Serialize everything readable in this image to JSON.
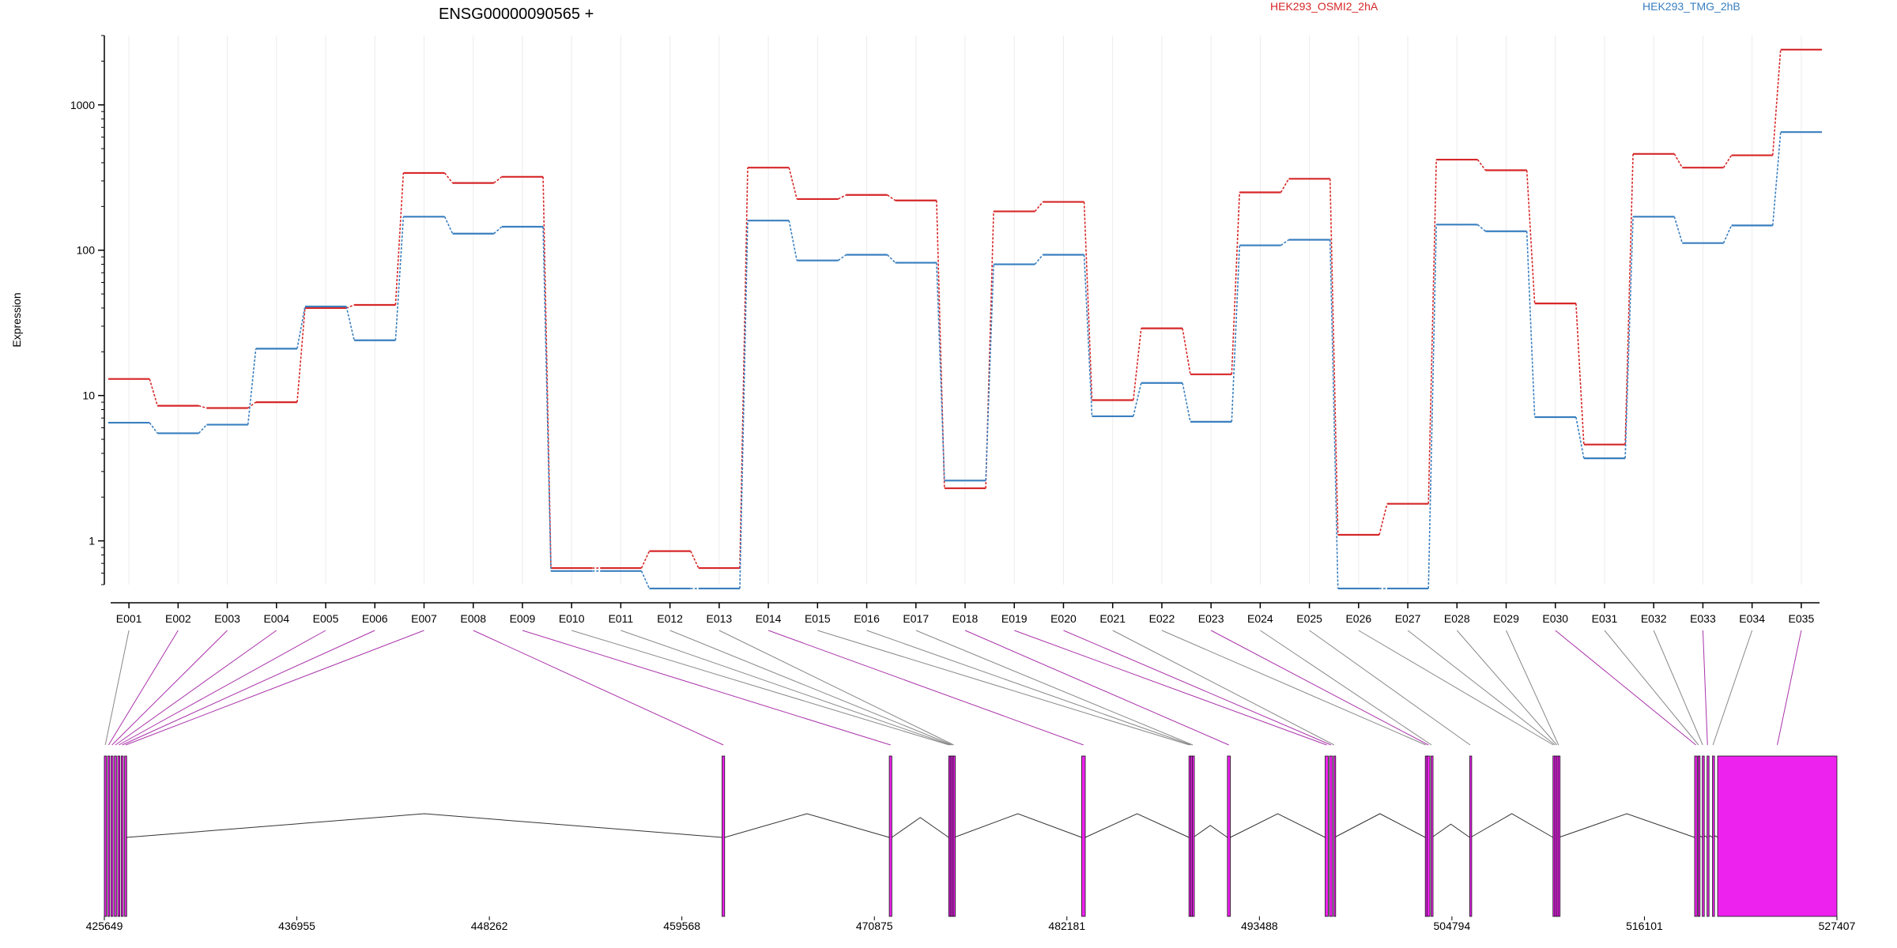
{
  "chart_data": {
    "type": "line",
    "title": "ENSG00000090565 +",
    "ylabel": "Expression",
    "xlabel": "",
    "yscale": "log",
    "ylim": [
      0.5,
      3000
    ],
    "yticks": [
      1,
      10,
      100,
      1000
    ],
    "ytick_labels": [
      "1",
      "10",
      "100",
      "1000"
    ],
    "grid": "vertical",
    "legend_position": "top-right",
    "categories": [
      "E001",
      "E002",
      "E003",
      "E004",
      "E005",
      "E006",
      "E007",
      "E008",
      "E009",
      "E010",
      "E011",
      "E012",
      "E013",
      "E014",
      "E015",
      "E016",
      "E017",
      "E018",
      "E019",
      "E020",
      "E021",
      "E022",
      "E023",
      "E024",
      "E025",
      "E026",
      "E027",
      "E028",
      "E029",
      "E030",
      "E031",
      "E032",
      "E033",
      "E034",
      "E035"
    ],
    "series": [
      {
        "name": "HEK293_OSMI2_2hA",
        "color": "#d62728",
        "values": [
          13,
          8.5,
          8.2,
          9,
          40,
          42,
          340,
          290,
          320,
          0.65,
          0.65,
          0.85,
          0.65,
          370,
          225,
          240,
          220,
          2.3,
          185,
          215,
          9.3,
          29,
          14,
          250,
          310,
          1.1,
          1.8,
          420,
          355,
          43,
          4.6,
          460,
          370,
          450,
          2400
        ]
      },
      {
        "name": "HEK293_TMG_2hB",
        "color": "#3a7fbf",
        "values": [
          6.5,
          5.5,
          6.3,
          21,
          41,
          24,
          170,
          130,
          145,
          0.62,
          0.62,
          0.47,
          0.47,
          160,
          85,
          93,
          82,
          2.6,
          80,
          93,
          7.2,
          12.2,
          6.6,
          108,
          118,
          0.47,
          0.47,
          150,
          135,
          7.1,
          3.7,
          170,
          112,
          148,
          650
        ]
      }
    ],
    "gene_track": {
      "x_ticks": [
        425649,
        436955,
        448262,
        459568,
        470875,
        482181,
        493488,
        504794,
        516101,
        527407
      ],
      "x_tick_labels": [
        "425649",
        "436955",
        "448262",
        "459568",
        "470875",
        "482181",
        "493488",
        "504794",
        "516101",
        "527407"
      ],
      "exon_color": "#ee22ee",
      "highlight_color": "#aa33aa",
      "exons": [
        {
          "id": "E001",
          "start": 425649,
          "end": 425760,
          "hl": false
        },
        {
          "id": "E002",
          "start": 425840,
          "end": 425960,
          "hl": true
        },
        {
          "id": "E003",
          "start": 426040,
          "end": 426160,
          "hl": true
        },
        {
          "id": "E004",
          "start": 426240,
          "end": 426360,
          "hl": true
        },
        {
          "id": "E005",
          "start": 426440,
          "end": 426560,
          "hl": true
        },
        {
          "id": "E006",
          "start": 426640,
          "end": 426760,
          "hl": true
        },
        {
          "id": "E007",
          "start": 426840,
          "end": 426960,
          "hl": true
        },
        {
          "id": "E008",
          "start": 461930,
          "end": 462080,
          "hl": true
        },
        {
          "id": "E009",
          "start": 471750,
          "end": 471900,
          "hl": true
        },
        {
          "id": "E010",
          "start": 475240,
          "end": 475290,
          "hl": false
        },
        {
          "id": "E011",
          "start": 475330,
          "end": 475380,
          "hl": false
        },
        {
          "id": "E012",
          "start": 475420,
          "end": 475470,
          "hl": false
        },
        {
          "id": "E013",
          "start": 475510,
          "end": 475560,
          "hl": false
        },
        {
          "id": "E014",
          "start": 483050,
          "end": 483260,
          "hl": true
        },
        {
          "id": "E015",
          "start": 489350,
          "end": 489400,
          "hl": false
        },
        {
          "id": "E016",
          "start": 489450,
          "end": 489500,
          "hl": false
        },
        {
          "id": "E017",
          "start": 489550,
          "end": 489600,
          "hl": false
        },
        {
          "id": "E018",
          "start": 491610,
          "end": 491780,
          "hl": true
        },
        {
          "id": "E019",
          "start": 497350,
          "end": 497530,
          "hl": true
        },
        {
          "id": "E020",
          "start": 497600,
          "end": 497780,
          "hl": true
        },
        {
          "id": "E021",
          "start": 497850,
          "end": 497900,
          "hl": false
        },
        {
          "id": "E022",
          "start": 503230,
          "end": 503280,
          "hl": false
        },
        {
          "id": "E023",
          "start": 503330,
          "end": 503500,
          "hl": true
        },
        {
          "id": "E024",
          "start": 503570,
          "end": 503620,
          "hl": false
        },
        {
          "id": "E025",
          "start": 505840,
          "end": 505890,
          "hl": false
        },
        {
          "id": "E026",
          "start": 510730,
          "end": 510780,
          "hl": false
        },
        {
          "id": "E027",
          "start": 510830,
          "end": 510880,
          "hl": false
        },
        {
          "id": "E028",
          "start": 510930,
          "end": 510980,
          "hl": false
        },
        {
          "id": "E029",
          "start": 511030,
          "end": 511080,
          "hl": false
        },
        {
          "id": "E030",
          "start": 519050,
          "end": 519200,
          "hl": true
        },
        {
          "id": "E031",
          "start": 519250,
          "end": 519300,
          "hl": false
        },
        {
          "id": "E032",
          "start": 519500,
          "end": 519550,
          "hl": false
        },
        {
          "id": "E033",
          "start": 519780,
          "end": 519830,
          "hl": true
        },
        {
          "id": "E034",
          "start": 520100,
          "end": 520150,
          "hl": false
        },
        {
          "id": "E035",
          "start": 520400,
          "end": 527407,
          "hl": true
        }
      ]
    }
  }
}
